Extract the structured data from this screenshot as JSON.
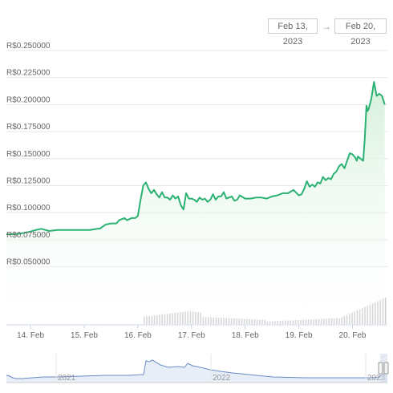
{
  "date_range": {
    "from": "Feb 13, 2023",
    "to": "Feb 20, 2023",
    "arrow": "→"
  },
  "colors": {
    "line": "#2bb273",
    "area_top": "#d3efd9",
    "volume": "#cccccc",
    "navigator_line": "#6a8bc4",
    "grid": "#e6e6e6"
  },
  "chart_data": {
    "type": "line",
    "title": "",
    "xlabel": "",
    "ylabel": "",
    "currency_prefix": "R$",
    "y_ticks": [
      "R$0.050000",
      "R$0.075000",
      "R$0.100000",
      "R$0.125000",
      "R$0.150000",
      "R$0.175000",
      "R$0.200000",
      "R$0.225000",
      "R$0.250000"
    ],
    "y_tick_values": [
      0.05,
      0.075,
      0.1,
      0.125,
      0.15,
      0.175,
      0.2,
      0.225,
      0.25
    ],
    "ylim": [
      0.05,
      0.25
    ],
    "x_ticks": [
      "14. Feb",
      "15. Feb",
      "16. Feb",
      "17. Feb",
      "18. Feb",
      "19. Feb",
      "20. Feb"
    ],
    "x_tick_days": [
      14,
      15,
      16,
      17,
      18,
      19,
      20
    ],
    "xlim_days": [
      13.55,
      20.65
    ],
    "grid": true,
    "series": [
      {
        "x_days": [
          13.55,
          13.7,
          13.85,
          14.0,
          14.1,
          14.2,
          14.35,
          14.5,
          14.7,
          14.9,
          15.1,
          15.3,
          15.4,
          15.5,
          15.6,
          15.65,
          15.75,
          15.8,
          15.88,
          15.95,
          16.0,
          16.02,
          16.05,
          16.08,
          16.1,
          16.15,
          16.2,
          16.25,
          16.3,
          16.35,
          16.4,
          16.45,
          16.5,
          16.55,
          16.6,
          16.65,
          16.7,
          16.75,
          16.8,
          16.85,
          16.9,
          16.95,
          17.0,
          17.05,
          17.1,
          17.15,
          17.2,
          17.25,
          17.3,
          17.35,
          17.4,
          17.45,
          17.5,
          17.55,
          17.6,
          17.65,
          17.7,
          17.75,
          17.8,
          17.85,
          17.9,
          18.0,
          18.1,
          18.2,
          18.3,
          18.4,
          18.5,
          18.6,
          18.7,
          18.8,
          18.9,
          19.0,
          19.05,
          19.1,
          19.15,
          19.2,
          19.25,
          19.3,
          19.35,
          19.4,
          19.45,
          19.5,
          19.55,
          19.6,
          19.65,
          19.7,
          19.75,
          19.8,
          19.85,
          19.9,
          19.95,
          20.0,
          20.05,
          20.08,
          20.1,
          20.15,
          20.2,
          20.23,
          20.26,
          20.28,
          20.3,
          20.35,
          20.4,
          20.45,
          20.5,
          20.55,
          20.6
        ],
        "values": [
          0.08,
          0.08,
          0.081,
          0.0825,
          0.084,
          0.085,
          0.083,
          0.084,
          0.084,
          0.084,
          0.084,
          0.0855,
          0.089,
          0.09,
          0.09,
          0.093,
          0.095,
          0.093,
          0.095,
          0.095,
          0.097,
          0.103,
          0.112,
          0.12,
          0.125,
          0.128,
          0.122,
          0.118,
          0.121,
          0.117,
          0.114,
          0.119,
          0.114,
          0.114,
          0.112,
          0.116,
          0.113,
          0.115,
          0.107,
          0.103,
          0.118,
          0.113,
          0.113,
          0.112,
          0.11,
          0.114,
          0.112,
          0.113,
          0.11,
          0.112,
          0.117,
          0.112,
          0.115,
          0.115,
          0.119,
          0.113,
          0.114,
          0.115,
          0.111,
          0.112,
          0.116,
          0.113,
          0.113,
          0.114,
          0.114,
          0.113,
          0.115,
          0.116,
          0.118,
          0.118,
          0.121,
          0.116,
          0.117,
          0.122,
          0.129,
          0.124,
          0.126,
          0.124,
          0.128,
          0.127,
          0.133,
          0.13,
          0.132,
          0.131,
          0.136,
          0.138,
          0.143,
          0.145,
          0.141,
          0.148,
          0.155,
          0.154,
          0.151,
          0.148,
          0.152,
          0.15,
          0.148,
          0.17,
          0.199,
          0.194,
          0.196,
          0.205,
          0.221,
          0.208,
          0.21,
          0.208,
          0.2
        ]
      }
    ],
    "navigator": {
      "x_ticks": [
        "2021",
        "2022",
        "2023"
      ]
    }
  }
}
